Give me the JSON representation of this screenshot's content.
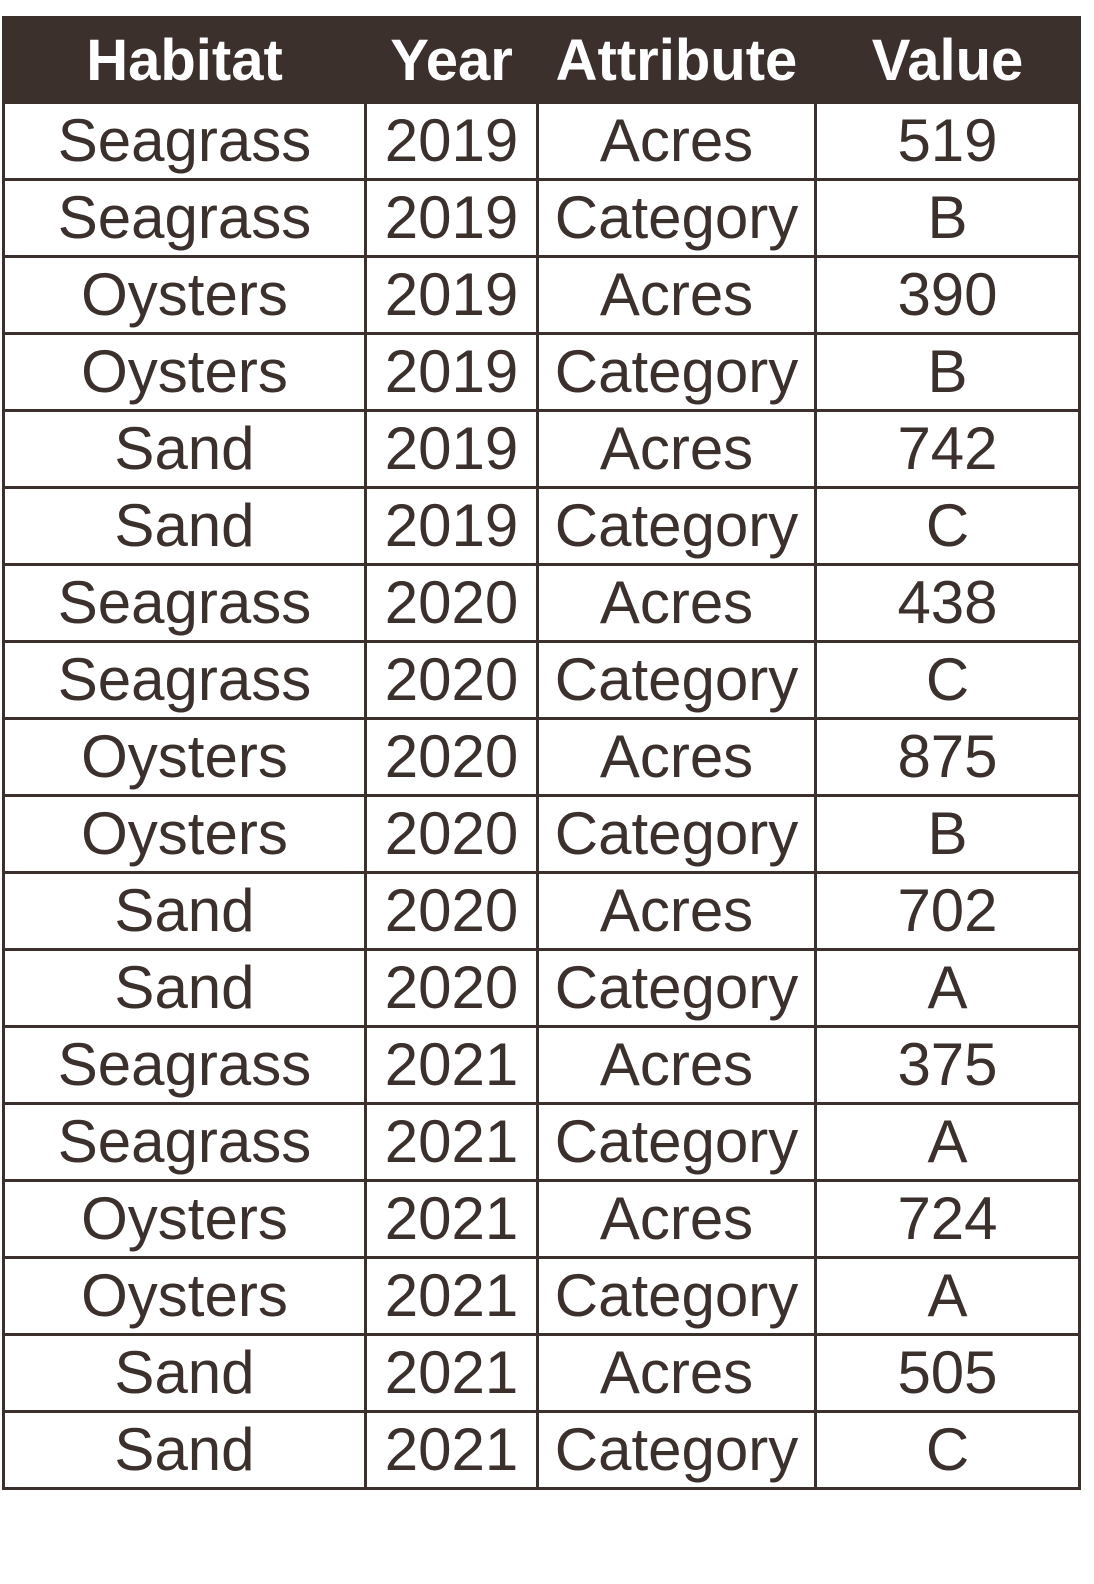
{
  "table": {
    "headers": [
      "Habitat",
      "Year",
      "Attribute",
      "Value"
    ],
    "rows": [
      [
        "Seagrass",
        "2019",
        "Acres",
        "519"
      ],
      [
        "Seagrass",
        "2019",
        "Category",
        "B"
      ],
      [
        "Oysters",
        "2019",
        "Acres",
        "390"
      ],
      [
        "Oysters",
        "2019",
        "Category",
        "B"
      ],
      [
        "Sand",
        "2019",
        "Acres",
        "742"
      ],
      [
        "Sand",
        "2019",
        "Category",
        "C"
      ],
      [
        "Seagrass",
        "2020",
        "Acres",
        "438"
      ],
      [
        "Seagrass",
        "2020",
        "Category",
        "C"
      ],
      [
        "Oysters",
        "2020",
        "Acres",
        "875"
      ],
      [
        "Oysters",
        "2020",
        "Category",
        "B"
      ],
      [
        "Sand",
        "2020",
        "Acres",
        "702"
      ],
      [
        "Sand",
        "2020",
        "Category",
        "A"
      ],
      [
        "Seagrass",
        "2021",
        "Acres",
        "375"
      ],
      [
        "Seagrass",
        "2021",
        "Category",
        "A"
      ],
      [
        "Oysters",
        "2021",
        "Acres",
        "724"
      ],
      [
        "Oysters",
        "2021",
        "Category",
        "A"
      ],
      [
        "Sand",
        "2021",
        "Acres",
        "505"
      ],
      [
        "Sand",
        "2021",
        "Category",
        "C"
      ]
    ]
  },
  "colors": {
    "header_bg": "#3b302c",
    "header_text": "#ffffff",
    "text": "#3b302c",
    "border": "#3b302c"
  }
}
